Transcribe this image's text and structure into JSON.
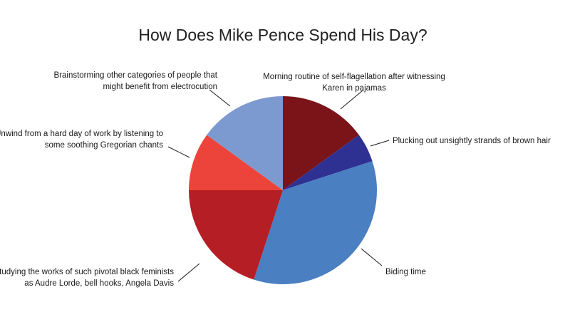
{
  "chart_data": {
    "type": "pie",
    "title": "How Does Mike Pence Spend His Day?",
    "start_angle_deg": 0,
    "direction": "clockwise",
    "legend": "none",
    "slices": [
      {
        "label": "Morning routine of self-flagellation after witnessing Karen in pajamas",
        "label_lines": [
          "Morning routine of self-flagellation after witnessing",
          "Karen in pajamas"
        ],
        "value": 15,
        "color": "#7a1419"
      },
      {
        "label": "Plucking out unsightly strands of brown hair",
        "label_lines": [
          "Plucking out unsightly strands of brown hair"
        ],
        "value": 5,
        "color": "#2e3192"
      },
      {
        "label": "Biding time",
        "label_lines": [
          "Biding time"
        ],
        "value": 35,
        "color": "#4a7fc1"
      },
      {
        "label": "Studying the works of such pivotal black feminists as Audre Lorde, bell hooks, Angela Davis",
        "label_lines": [
          "Studying the works of such pivotal black feminists",
          "as Audre Lorde, bell hooks, Angela Davis"
        ],
        "value": 20,
        "color": "#b51e24"
      },
      {
        "label": "Unwind from a hard day of work by listening to some soothing Gregorian chants",
        "label_lines": [
          "Unwind from a hard day of work by listening to",
          "some soothing Gregorian chants"
        ],
        "value": 10,
        "color": "#ec443b"
      },
      {
        "label": "Brainstorming other categories of people that might benefit from electrocution",
        "label_lines": [
          "Brainstorming other categories of people that",
          "might benefit from electrocution"
        ],
        "value": 15,
        "color": "#7d9ad0"
      }
    ]
  }
}
